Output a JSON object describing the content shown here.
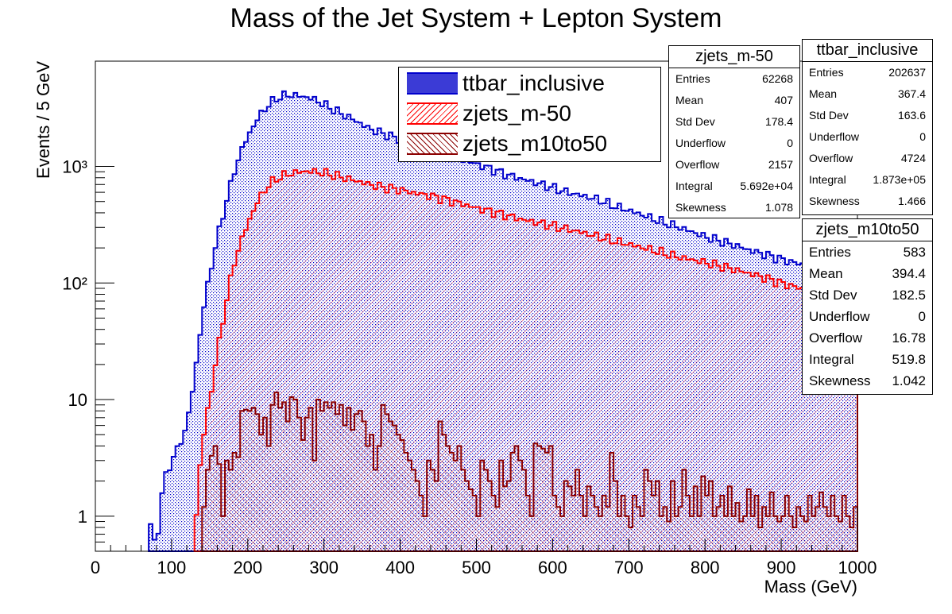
{
  "title": "Mass of the Jet System + Lepton System",
  "chart_data": {
    "type": "histogram",
    "title": "Mass of the Jet System + Lepton System",
    "xlabel": "Mass (GeV)",
    "ylabel": "Events / 5 GeV",
    "xlim": [
      0,
      1000
    ],
    "ylim": [
      0.5,
      8000
    ],
    "yscale": "log",
    "bin_width": 5,
    "x_ticks": [
      0,
      100,
      200,
      300,
      400,
      500,
      600,
      700,
      800,
      900,
      1000
    ],
    "y_ticks": [
      {
        "value": 1,
        "label": "1"
      },
      {
        "value": 10,
        "label": "10"
      },
      {
        "value": 100,
        "label": "10²"
      },
      {
        "value": 1000,
        "label": "10³"
      }
    ],
    "legend_position": "top-center",
    "series": [
      {
        "name": "ttbar_inclusive",
        "color": "#0000cc",
        "fill": "dotted-blue",
        "curve": [
          [
            70,
            1.0
          ],
          [
            80,
            0.5
          ],
          [
            85,
            1.2
          ],
          [
            90,
            2.0
          ],
          [
            100,
            3.0
          ],
          [
            110,
            4.0
          ],
          [
            120,
            6.0
          ],
          [
            130,
            15
          ],
          [
            140,
            50
          ],
          [
            150,
            120
          ],
          [
            160,
            240
          ],
          [
            170,
            450
          ],
          [
            180,
            800
          ],
          [
            190,
            1300
          ],
          [
            200,
            1800
          ],
          [
            210,
            2400
          ],
          [
            220,
            3000
          ],
          [
            230,
            3500
          ],
          [
            240,
            3900
          ],
          [
            250,
            4100
          ],
          [
            260,
            4100
          ],
          [
            270,
            4000
          ],
          [
            280,
            3900
          ],
          [
            290,
            3700
          ],
          [
            300,
            3400
          ],
          [
            320,
            2900
          ],
          [
            340,
            2500
          ],
          [
            360,
            2100
          ],
          [
            380,
            1900
          ],
          [
            400,
            1700
          ],
          [
            420,
            1500
          ],
          [
            440,
            1350
          ],
          [
            460,
            1250
          ],
          [
            480,
            1150
          ],
          [
            500,
            1050
          ],
          [
            520,
            950
          ],
          [
            540,
            850
          ],
          [
            560,
            780
          ],
          [
            580,
            720
          ],
          [
            600,
            660
          ],
          [
            620,
            600
          ],
          [
            640,
            560
          ],
          [
            660,
            520
          ],
          [
            680,
            460
          ],
          [
            700,
            420
          ],
          [
            720,
            380
          ],
          [
            740,
            340
          ],
          [
            760,
            310
          ],
          [
            780,
            280
          ],
          [
            800,
            250
          ],
          [
            820,
            230
          ],
          [
            840,
            210
          ],
          [
            860,
            190
          ],
          [
            880,
            175
          ],
          [
            900,
            160
          ],
          [
            920,
            148
          ],
          [
            940,
            140
          ],
          [
            960,
            132
          ],
          [
            980,
            124
          ],
          [
            1000,
            118
          ]
        ]
      },
      {
        "name": "zjets_m-50",
        "color": "#ff0000",
        "fill": "hatch-red",
        "curve": [
          [
            130,
            0.5
          ],
          [
            135,
            2.0
          ],
          [
            140,
            4.0
          ],
          [
            150,
            10
          ],
          [
            160,
            25
          ],
          [
            170,
            60
          ],
          [
            180,
            130
          ],
          [
            190,
            220
          ],
          [
            200,
            320
          ],
          [
            210,
            460
          ],
          [
            220,
            600
          ],
          [
            230,
            720
          ],
          [
            240,
            800
          ],
          [
            250,
            850
          ],
          [
            260,
            880
          ],
          [
            270,
            900
          ],
          [
            280,
            910
          ],
          [
            290,
            900
          ],
          [
            300,
            880
          ],
          [
            320,
            820
          ],
          [
            340,
            760
          ],
          [
            360,
            700
          ],
          [
            380,
            660
          ],
          [
            400,
            630
          ],
          [
            420,
            590
          ],
          [
            440,
            560
          ],
          [
            460,
            520
          ],
          [
            480,
            480
          ],
          [
            500,
            440
          ],
          [
            520,
            410
          ],
          [
            540,
            380
          ],
          [
            560,
            350
          ],
          [
            580,
            330
          ],
          [
            600,
            310
          ],
          [
            620,
            290
          ],
          [
            640,
            270
          ],
          [
            660,
            250
          ],
          [
            680,
            230
          ],
          [
            700,
            215
          ],
          [
            720,
            200
          ],
          [
            740,
            185
          ],
          [
            760,
            170
          ],
          [
            780,
            160
          ],
          [
            800,
            150
          ],
          [
            820,
            140
          ],
          [
            840,
            130
          ],
          [
            860,
            120
          ],
          [
            880,
            110
          ],
          [
            900,
            100
          ],
          [
            920,
            92
          ],
          [
            940,
            85
          ],
          [
            960,
            80
          ],
          [
            980,
            74
          ],
          [
            1000,
            70
          ]
        ]
      },
      {
        "name": "zjets_m10to50",
        "color": "#8b0000",
        "fill": "hatch-darkred",
        "bins": [
          [
            140,
            1.2
          ],
          [
            145,
            2.5
          ],
          [
            150,
            3.3
          ],
          [
            155,
            4.0
          ],
          [
            160,
            2.8
          ],
          [
            165,
            1.0
          ],
          [
            170,
            3.0
          ],
          [
            175,
            2.5
          ],
          [
            180,
            3.5
          ],
          [
            185,
            3.2
          ],
          [
            190,
            8.0
          ],
          [
            195,
            8.2
          ],
          [
            200,
            8.0
          ],
          [
            205,
            8.5
          ],
          [
            210,
            7.5
          ],
          [
            215,
            5.0
          ],
          [
            220,
            7.0
          ],
          [
            225,
            4.0
          ],
          [
            230,
            9.0
          ],
          [
            235,
            11.5
          ],
          [
            240,
            8.5
          ],
          [
            245,
            9.5
          ],
          [
            250,
            6.5
          ],
          [
            255,
            10.5
          ],
          [
            260,
            10.0
          ],
          [
            265,
            7.0
          ],
          [
            270,
            4.5
          ],
          [
            275,
            7.0
          ],
          [
            280,
            8.5
          ],
          [
            285,
            3.0
          ],
          [
            290,
            10.0
          ],
          [
            295,
            8.0
          ],
          [
            300,
            9.5
          ],
          [
            305,
            8.5
          ],
          [
            310,
            9.5
          ],
          [
            315,
            7.5
          ],
          [
            320,
            9.0
          ],
          [
            325,
            6.0
          ],
          [
            330,
            8.5
          ],
          [
            335,
            5.5
          ],
          [
            340,
            7.5
          ],
          [
            345,
            8.0
          ],
          [
            350,
            6.5
          ],
          [
            355,
            4.0
          ],
          [
            360,
            5.0
          ],
          [
            365,
            2.5
          ],
          [
            370,
            4.0
          ],
          [
            375,
            9.0
          ],
          [
            380,
            7.5
          ],
          [
            385,
            6.5
          ],
          [
            390,
            6.0
          ],
          [
            395,
            5.0
          ],
          [
            400,
            4.5
          ],
          [
            405,
            3.5
          ],
          [
            410,
            3.0
          ],
          [
            415,
            2.5
          ],
          [
            420,
            2.0
          ],
          [
            425,
            1.5
          ],
          [
            430,
            1.0
          ],
          [
            435,
            3.0
          ],
          [
            440,
            2.5
          ],
          [
            445,
            2.0
          ],
          [
            450,
            6.5
          ],
          [
            455,
            5.0
          ],
          [
            460,
            4.0
          ],
          [
            465,
            3.5
          ],
          [
            470,
            3.0
          ],
          [
            475,
            4.0
          ],
          [
            480,
            2.5
          ],
          [
            485,
            2.0
          ],
          [
            490,
            1.7
          ],
          [
            495,
            1.5
          ],
          [
            500,
            1.0
          ],
          [
            505,
            3.0
          ],
          [
            510,
            2.5
          ],
          [
            515,
            2.0
          ],
          [
            520,
            1.5
          ],
          [
            525,
            1.2
          ],
          [
            530,
            3.0
          ],
          [
            535,
            1.8
          ],
          [
            540,
            2.0
          ],
          [
            545,
            3.5
          ],
          [
            550,
            4.0
          ],
          [
            555,
            3.0
          ],
          [
            560,
            2.5
          ],
          [
            565,
            1.5
          ],
          [
            570,
            1.0
          ],
          [
            575,
            4.2
          ],
          [
            580,
            4.0
          ],
          [
            585,
            3.8
          ],
          [
            590,
            3.5
          ],
          [
            595,
            4.0
          ],
          [
            600,
            1.5
          ],
          [
            605,
            1.2
          ],
          [
            610,
            1.0
          ],
          [
            615,
            2.0
          ],
          [
            620,
            1.8
          ],
          [
            625,
            1.5
          ],
          [
            630,
            2.5
          ],
          [
            635,
            1.5
          ],
          [
            640,
            1.0
          ],
          [
            645,
            1.8
          ],
          [
            650,
            1.5
          ],
          [
            655,
            1.2
          ],
          [
            660,
            1.0
          ],
          [
            665,
            1.5
          ],
          [
            670,
            1.2
          ],
          [
            675,
            3.5
          ],
          [
            680,
            2.0
          ],
          [
            685,
            1.0
          ],
          [
            690,
            1.5
          ],
          [
            695,
            1.0
          ],
          [
            700,
            0.8
          ],
          [
            705,
            1.5
          ],
          [
            710,
            1.2
          ],
          [
            715,
            1.0
          ],
          [
            720,
            2.5
          ],
          [
            725,
            2.0
          ],
          [
            730,
            1.5
          ],
          [
            735,
            2.0
          ],
          [
            740,
            1.0
          ],
          [
            745,
            1.2
          ],
          [
            750,
            0.9
          ],
          [
            755,
            2.0
          ],
          [
            760,
            1.0
          ],
          [
            765,
            1.2
          ],
          [
            770,
            2.5
          ],
          [
            775,
            1.5
          ],
          [
            780,
            1.0
          ],
          [
            785,
            1.8
          ],
          [
            790,
            1.0
          ],
          [
            795,
            2.2
          ],
          [
            800,
            1.5
          ],
          [
            805,
            2.0
          ],
          [
            810,
            1.0
          ],
          [
            815,
            1.2
          ],
          [
            820,
            1.5
          ],
          [
            825,
            1.0
          ],
          [
            830,
            1.8
          ],
          [
            835,
            1.0
          ],
          [
            840,
            1.3
          ],
          [
            845,
            0.9
          ],
          [
            850,
            1.0
          ],
          [
            855,
            1.7
          ],
          [
            860,
            1.0
          ],
          [
            865,
            1.5
          ],
          [
            870,
            0.8
          ],
          [
            875,
            1.2
          ],
          [
            880,
            1.0
          ],
          [
            885,
            1.6
          ],
          [
            890,
            1.0
          ],
          [
            895,
            0.9
          ],
          [
            900,
            1.0
          ],
          [
            905,
            1.5
          ],
          [
            910,
            1.0
          ],
          [
            915,
            0.8
          ],
          [
            920,
            1.2
          ],
          [
            925,
            1.0
          ],
          [
            930,
            0.9
          ],
          [
            935,
            1.5
          ],
          [
            940,
            1.0
          ],
          [
            945,
            1.2
          ],
          [
            950,
            1.6
          ],
          [
            955,
            1.2
          ],
          [
            960,
            1.0
          ],
          [
            965,
            1.5
          ],
          [
            970,
            1.0
          ],
          [
            975,
            0.9
          ],
          [
            980,
            1.5
          ],
          [
            985,
            1.0
          ],
          [
            990,
            0.8
          ],
          [
            995,
            1.2
          ]
        ]
      }
    ]
  },
  "stats_boxes": [
    {
      "title": "zjets_m-50",
      "rows": [
        [
          "Entries",
          "62268"
        ],
        [
          "Mean",
          "407"
        ],
        [
          "Std Dev",
          "178.4"
        ],
        [
          "Underflow",
          "0"
        ],
        [
          "Overflow",
          "2157"
        ],
        [
          "Integral",
          "5.692e+04"
        ],
        [
          "Skewness",
          "1.078"
        ]
      ]
    },
    {
      "title": "ttbar_inclusive",
      "rows": [
        [
          "Entries",
          "202637"
        ],
        [
          "Mean",
          "367.4"
        ],
        [
          "Std Dev",
          "163.6"
        ],
        [
          "Underflow",
          "0"
        ],
        [
          "Overflow",
          "4724"
        ],
        [
          "Integral",
          "1.873e+05"
        ],
        [
          "Skewness",
          "1.466"
        ]
      ]
    },
    {
      "title": "zjets_m10to50",
      "rows": [
        [
          "Entries",
          "583"
        ],
        [
          "Mean",
          "394.4"
        ],
        [
          "Std Dev",
          "182.5"
        ],
        [
          "Underflow",
          "0"
        ],
        [
          "Overflow",
          "16.78"
        ],
        [
          "Integral",
          "519.8"
        ],
        [
          "Skewness",
          "1.042"
        ]
      ]
    }
  ]
}
